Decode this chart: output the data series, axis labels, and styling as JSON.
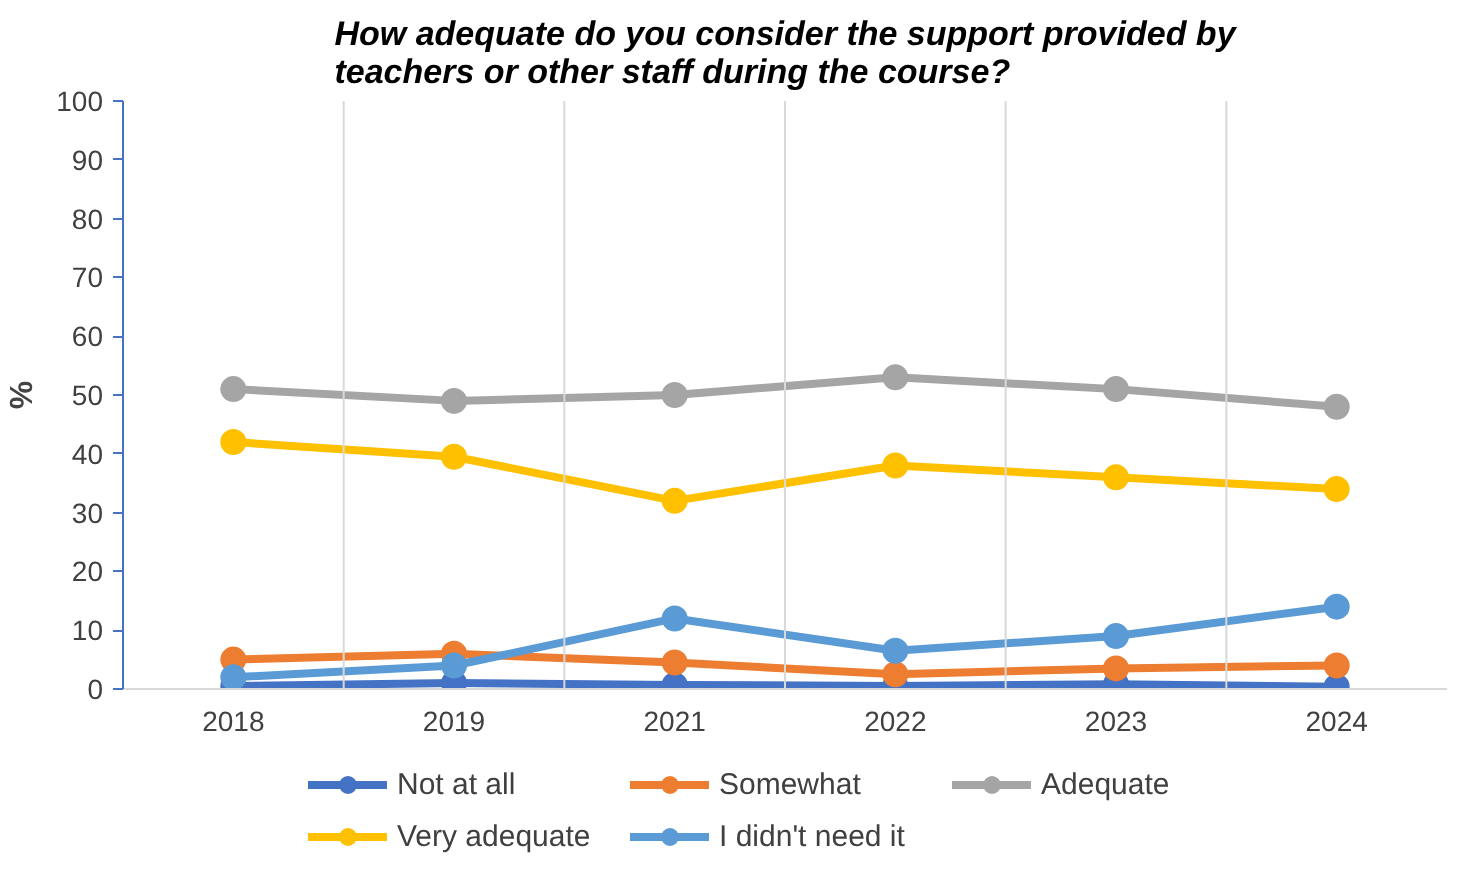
{
  "chart_data": {
    "type": "line",
    "title": "How adequate do you consider the support provided by\nteachers or other staff during the course?",
    "ylabel": "%",
    "categories": [
      "2018",
      "2019",
      "2021",
      "2022",
      "2023",
      "2024"
    ],
    "series": [
      {
        "name": "Not at all",
        "color": "#4472c4",
        "values": [
          0.5,
          1,
          0.7,
          0.5,
          0.8,
          0.4
        ]
      },
      {
        "name": "Somewhat",
        "color": "#ed7d31",
        "values": [
          5,
          6,
          4.5,
          2.5,
          3.5,
          4
        ]
      },
      {
        "name": "Adequate",
        "color": "#a5a5a5",
        "values": [
          51,
          49,
          50,
          53,
          51,
          48
        ]
      },
      {
        "name": "Very adequate",
        "color": "#ffc000",
        "values": [
          42,
          39.5,
          32,
          38,
          36,
          34
        ]
      },
      {
        "name": "I didn't need it",
        "color": "#5b9bd5",
        "values": [
          2,
          4,
          12,
          6.5,
          9,
          14
        ]
      }
    ],
    "ylim": [
      0,
      100
    ],
    "yticks": [
      0,
      10,
      20,
      30,
      40,
      50,
      60,
      70,
      80,
      90,
      100
    ],
    "grid": "x",
    "legend": "bottom",
    "marker": "circle",
    "line_style": "solid"
  }
}
